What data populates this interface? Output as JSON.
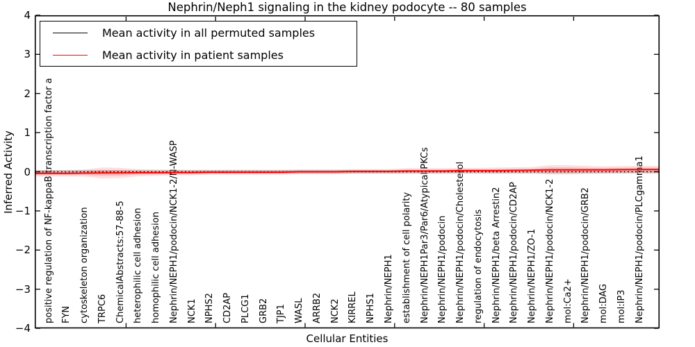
{
  "chart_data": {
    "type": "line",
    "title": "Nephrin/Neph1 signaling in the kidney podocyte -- 80 samples",
    "xlabel": "Cellular Entities",
    "ylabel": "Inferred Activity",
    "ylim": [
      -4,
      4
    ],
    "yticks": [
      4,
      3,
      2,
      1,
      0,
      -1,
      -2,
      -3,
      -4
    ],
    "ytick_labels": [
      "4",
      "3",
      "2",
      "1",
      "0",
      "−1",
      "−2",
      "−3",
      "−4"
    ],
    "grid": false,
    "legend_position": "upper left",
    "categories": [
      "positive regulation of NF-kappaB transcription factor a",
      "FYN",
      "cytoskeleton organization",
      "TRPC6",
      "ChemicalAbstracts:57-88-5",
      "heterophilic cell adhesion",
      "homophilic cell adhesion",
      "Nephrin/NEPH1/podocin/NCK1-2/N-WASP",
      "NCK1",
      "NPHS2",
      "CD2AP",
      "PLCG1",
      "GRB2",
      "TJP1",
      "WASL",
      "ARRB2",
      "NCK2",
      "KIRREL",
      "NPHS1",
      "Nephrin/NEPH1",
      "establishment of cell polarity",
      "Nephrin/NEPH1Par3/Par6/Atypical PKCs",
      "Nephrin/NEPH1/podocin",
      "Nephrin/NEPH1/podocin/Cholesterol",
      "regulation of endocytosis",
      "Nephrin/NEPH1/beta Arrestin2",
      "Nephrin/NEPH1/podocin/CD2AP",
      "Nephrin/NEPH1/ZO-1",
      "Nephrin/NEPH1/podocin/NCK1-2",
      "mol:Ca2+",
      "Nephrin/NEPH1/podocin/GRB2",
      "mol:DAG",
      "mol:IP3",
      "Nephrin/NEPH1/podocin/PLCgamma1"
    ],
    "series": [
      {
        "name": "Mean activity in all permuted samples",
        "color": "#000000",
        "plot_line_style": "dotted",
        "values": [
          0,
          0,
          0,
          0,
          0,
          0,
          0,
          0,
          0,
          0,
          0,
          0,
          0,
          0,
          0,
          0,
          0,
          0,
          0,
          0,
          0,
          0,
          0,
          0,
          0,
          0,
          0,
          0,
          0,
          0,
          0,
          0,
          0,
          0
        ],
        "band_halfwidth": [
          0.045,
          0.045,
          0.045,
          0.045,
          0.045,
          0.045,
          0.045,
          0.045,
          0.045,
          0.045,
          0.045,
          0.045,
          0.045,
          0.045,
          0.045,
          0.045,
          0.045,
          0.045,
          0.045,
          0.045,
          0.045,
          0.045,
          0.045,
          0.045,
          0.045,
          0.045,
          0.045,
          0.045,
          0.045,
          0.045,
          0.045,
          0.045,
          0.045,
          0.045
        ]
      },
      {
        "name": "Mean activity in patient samples",
        "color": "#ff0000",
        "plot_line_style": "solid",
        "values": [
          -0.04,
          -0.04,
          -0.035,
          -0.03,
          -0.03,
          -0.025,
          -0.025,
          -0.02,
          -0.02,
          -0.012,
          -0.012,
          -0.012,
          -0.012,
          -0.012,
          0,
          0,
          0,
          0.01,
          0.01,
          0.01,
          0.02,
          0.02,
          0.02,
          0.03,
          0.03,
          0.03,
          0.035,
          0.04,
          0.05,
          0.05,
          0.05,
          0.05,
          0.055,
          0.06
        ],
        "band_halfwidth": [
          0.08,
          0.08,
          0.09,
          0.14,
          0.13,
          0.09,
          0.08,
          0.07,
          0.07,
          0.06,
          0.06,
          0.06,
          0.06,
          0.06,
          0.06,
          0.06,
          0.06,
          0.06,
          0.06,
          0.06,
          0.07,
          0.07,
          0.07,
          0.07,
          0.07,
          0.08,
          0.08,
          0.08,
          0.12,
          0.12,
          0.1,
          0.09,
          0.09,
          0.09
        ]
      }
    ]
  }
}
